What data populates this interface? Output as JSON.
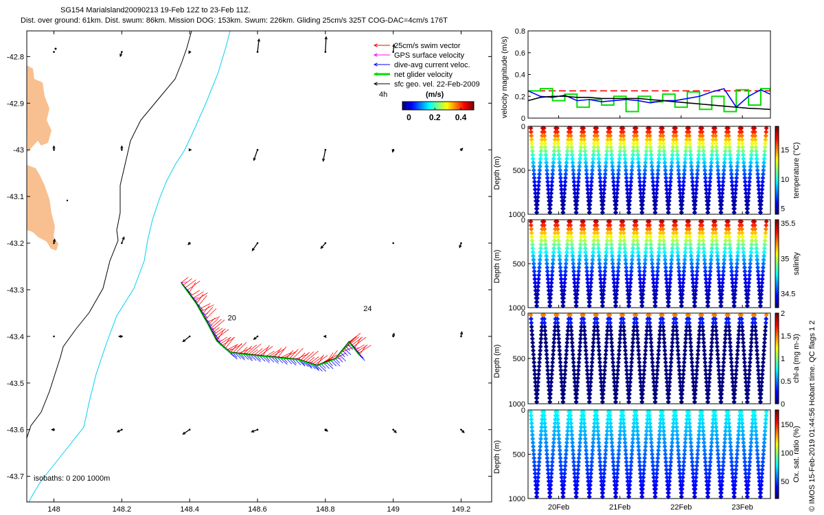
{
  "header": {
    "title": "SG154 Marialsland20090213 19-Feb 12Z to 23-Feb 11Z.",
    "subtitle": "Dist. over ground: 61km. Dist. swum: 86km. Mission DOG: 153km. Swum: 226km. Gliding 25cm/s 325T COG-DAC=4cm/s 176T"
  },
  "credit": "© IMOS 15-Feb-2019 01:44:56 Hobart time. QC flags 1  2",
  "colors": {
    "land": "#f8c090",
    "coast_contour": "#000000",
    "deep_contour": "#00d0f0",
    "swim": "#ff0000",
    "gps": "#ff00ff",
    "dac": "#0000ff",
    "net": "#00dd00",
    "sfc": "#000000"
  },
  "chart_data": [
    {
      "id": "map",
      "type": "scatter",
      "xlim": [
        147.92,
        149.29
      ],
      "ylim": [
        -43.755,
        -42.745
      ],
      "x_ticks": [
        148,
        148.2,
        148.4,
        148.6,
        148.8,
        149,
        149.2
      ],
      "x_tick_labels": [
        "148",
        "148.2",
        "148.4",
        "148.6",
        "148.8",
        "149",
        "149.2"
      ],
      "y_ticks": [
        -42.8,
        -42.9,
        -43,
        -43.1,
        -43.2,
        -43.3,
        -43.4,
        -43.5,
        -43.6,
        -43.7
      ],
      "y_tick_labels": [
        "-42.8",
        "-42.9",
        "-43",
        "-43.1",
        "-43.2",
        "-43.3",
        "-43.4",
        "-43.5",
        "-43.6",
        "-43.7"
      ],
      "legend": [
        {
          "label": "25cm/s swim vector",
          "color": "#ff0000",
          "style": "thin"
        },
        {
          "label": "GPS surface velocity",
          "color": "#ff00ff",
          "style": "thin"
        },
        {
          "label": "dive-avg current veloc.",
          "color": "#0000ff",
          "style": "thin"
        },
        {
          "label": "net glider velocity",
          "color": "#00dd00",
          "style": "thick"
        },
        {
          "label": "sfc geo. vel. 22-Feb-2009",
          "color": "#000000",
          "style": "thin"
        }
      ],
      "scale_label": "4h",
      "colorbar": {
        "title": "(m/s)",
        "ticks": [
          0,
          0.2,
          0.4
        ],
        "tick_labels": [
          "0",
          "0.2",
          "0.4"
        ],
        "range": [
          -0.05,
          0.5
        ]
      },
      "isobaths_label": "isobaths: 0   200  1000m",
      "day_labels": [
        {
          "text": "20",
          "x": 148.5,
          "y": -43.36
        },
        {
          "text": "24",
          "x": 148.9,
          "y": -43.34
        }
      ],
      "track": [
        [
          148.375,
          -43.285
        ],
        [
          148.42,
          -43.33
        ],
        [
          148.455,
          -43.375
        ],
        [
          148.48,
          -43.41
        ],
        [
          148.52,
          -43.435
        ],
        [
          148.58,
          -43.44
        ],
        [
          148.65,
          -43.445
        ],
        [
          148.72,
          -43.45
        ],
        [
          148.775,
          -43.463
        ],
        [
          148.83,
          -43.448
        ],
        [
          148.87,
          -43.412
        ],
        [
          148.9,
          -43.44
        ]
      ],
      "geo_vectors": [
        {
          "x": 148.0,
          "y": -42.79,
          "u": 0.01,
          "v": 0.0
        },
        {
          "x": 148.2,
          "y": -42.79,
          "u": -0.02,
          "v": -0.06
        },
        {
          "x": 148.4,
          "y": -42.79,
          "u": -0.01,
          "v": -0.02
        },
        {
          "x": 148.6,
          "y": -42.79,
          "u": 0.02,
          "v": 0.17
        },
        {
          "x": 148.8,
          "y": -42.79,
          "u": 0.01,
          "v": 0.2
        },
        {
          "x": 149.0,
          "y": -42.79,
          "u": 0.01,
          "v": 0.1
        },
        {
          "x": 148.0,
          "y": -43.0,
          "u": 0.0,
          "v": 0.05
        },
        {
          "x": 148.2,
          "y": -43.0,
          "u": 0.0,
          "v": 0.05
        },
        {
          "x": 148.4,
          "y": -43.0,
          "u": 0.02,
          "v": 0.0
        },
        {
          "x": 148.6,
          "y": -43.0,
          "u": -0.05,
          "v": -0.14
        },
        {
          "x": 148.8,
          "y": -43.0,
          "u": -0.03,
          "v": -0.15
        },
        {
          "x": 149.0,
          "y": -43.0,
          "u": -0.01,
          "v": -0.03
        },
        {
          "x": 149.2,
          "y": -43.0,
          "u": 0.02,
          "v": 0.02
        },
        {
          "x": 148.0,
          "y": -43.2,
          "u": 0.01,
          "v": 0.05
        },
        {
          "x": 148.2,
          "y": -43.2,
          "u": 0.03,
          "v": 0.08
        },
        {
          "x": 148.4,
          "y": -43.2,
          "u": -0.02,
          "v": -0.02
        },
        {
          "x": 148.6,
          "y": -43.2,
          "u": -0.07,
          "v": -0.1
        },
        {
          "x": 148.8,
          "y": -43.2,
          "u": -0.06,
          "v": -0.07
        },
        {
          "x": 149.0,
          "y": -43.2,
          "u": 0.0,
          "v": 0.0
        },
        {
          "x": 149.2,
          "y": -43.2,
          "u": -0.02,
          "v": -0.06
        },
        {
          "x": 148.0,
          "y": -43.4,
          "u": 0.0,
          "v": 0.0
        },
        {
          "x": 148.2,
          "y": -43.4,
          "u": -0.04,
          "v": 0.0
        },
        {
          "x": 148.4,
          "y": -43.4,
          "u": -0.09,
          "v": -0.07
        },
        {
          "x": 148.6,
          "y": -43.4,
          "u": -0.05,
          "v": -0.04
        },
        {
          "x": 148.8,
          "y": -43.4,
          "u": -0.02,
          "v": 0.0
        },
        {
          "x": 149.0,
          "y": -43.4,
          "u": 0.01,
          "v": 0.04
        },
        {
          "x": 149.2,
          "y": -43.4,
          "u": 0.01,
          "v": 0.06
        },
        {
          "x": 148.0,
          "y": -43.6,
          "u": -0.03,
          "v": 0.0
        },
        {
          "x": 148.2,
          "y": -43.6,
          "u": -0.06,
          "v": -0.03
        },
        {
          "x": 148.4,
          "y": -43.6,
          "u": -0.09,
          "v": -0.06
        },
        {
          "x": 148.6,
          "y": -43.6,
          "u": -0.08,
          "v": -0.03
        },
        {
          "x": 148.8,
          "y": -43.6,
          "u": 0.03,
          "v": -0.02
        },
        {
          "x": 149.0,
          "y": -43.6,
          "u": 0.04,
          "v": -0.04
        },
        {
          "x": 149.2,
          "y": -43.6,
          "u": 0.04,
          "v": -0.04
        }
      ]
    },
    {
      "id": "velocity",
      "type": "line",
      "ylabel": "velocity magnitude (m/s)",
      "ylim": [
        0,
        0.8
      ],
      "y_ticks": [
        0,
        0.2,
        0.4,
        0.6,
        0.8
      ],
      "y_tick_labels": [
        "0",
        "0.2",
        "0.4",
        "0.6",
        "0.8"
      ],
      "xlim": [
        19.5,
        23.458
      ],
      "x": [
        19.5,
        19.7,
        19.9,
        20.1,
        20.3,
        20.5,
        20.7,
        20.9,
        21.1,
        21.3,
        21.5,
        21.7,
        21.9,
        22.1,
        22.3,
        22.5,
        22.7,
        22.9,
        23.1,
        23.3,
        23.45
      ],
      "series": [
        {
          "name": "25cm/s swim vector",
          "color": "#ff0000",
          "dashed": true,
          "values": [
            0.25,
            0.25,
            0.25,
            0.25,
            0.25,
            0.25,
            0.25,
            0.25,
            0.25,
            0.25,
            0.25,
            0.25,
            0.25,
            0.25,
            0.25,
            0.25,
            0.25,
            0.25,
            0.25,
            0.25,
            0.25
          ]
        },
        {
          "name": "net glider velocity",
          "color": "#00dd00",
          "step": true,
          "values": [
            0.25,
            0.27,
            0.16,
            0.22,
            0.1,
            0.17,
            0.12,
            0.2,
            0.06,
            0.2,
            0.15,
            0.22,
            0.1,
            0.24,
            0.08,
            0.2,
            0.06,
            0.26,
            0.12,
            0.27,
            0.24
          ]
        },
        {
          "name": "dive-avg current veloc.",
          "color": "#0000ff",
          "values": [
            0.25,
            0.2,
            0.19,
            0.21,
            0.16,
            0.17,
            0.15,
            0.16,
            0.17,
            0.16,
            0.14,
            0.16,
            0.16,
            0.18,
            0.2,
            0.24,
            0.27,
            0.1,
            0.2,
            0.26,
            0.22
          ]
        },
        {
          "name": "sfc geo. vel. 22-Feb-2009",
          "color": "#000000",
          "values": [
            0.16,
            0.19,
            0.2,
            0.2,
            0.19,
            0.19,
            0.18,
            0.18,
            0.18,
            0.18,
            0.17,
            0.16,
            0.15,
            0.14,
            0.13,
            0.12,
            0.11,
            0.1,
            0.09,
            0.085,
            0.08
          ]
        }
      ]
    },
    {
      "id": "temperature",
      "type": "scatter",
      "ylabel": "Depth (m)",
      "ylim": [
        1000,
        0
      ],
      "y_ticks": [
        0,
        500,
        1000
      ],
      "y_tick_labels": [
        "0",
        "500",
        "1000"
      ],
      "colorbar_label": "temperature (°C)",
      "cb_range": [
        4,
        19
      ],
      "cb_ticks": [
        5,
        10,
        15
      ],
      "cb_tick_labels": [
        "5",
        "10",
        "15"
      ],
      "dives": 18,
      "surface_value": 18.5,
      "deep_value": 4.5,
      "min_surface_depth": 0
    },
    {
      "id": "salinity",
      "type": "scatter",
      "ylabel": "Depth (m)",
      "ylim": [
        1000,
        0
      ],
      "y_ticks": [
        0,
        500,
        1000
      ],
      "y_tick_labels": [
        "0",
        "500",
        "1000"
      ],
      "colorbar_label": "salinity",
      "cb_range": [
        34.3,
        35.55
      ],
      "cb_ticks": [
        34.5,
        35,
        35.5
      ],
      "cb_tick_labels": [
        "34.5",
        "35",
        "35.5"
      ],
      "dives": 18,
      "surface_value": 35.5,
      "deep_value": 34.35,
      "min_surface_depth": 0
    },
    {
      "id": "chla",
      "type": "scatter",
      "ylabel": "Depth (m)",
      "ylim": [
        1000,
        0
      ],
      "y_ticks": [
        0,
        500,
        1000
      ],
      "y_tick_labels": [
        "0",
        "500",
        "1000"
      ],
      "colorbar_label": "chl-a (mg m-3)",
      "cb_range": [
        0,
        2
      ],
      "cb_ticks": [
        0,
        0.5,
        1,
        1.5,
        2
      ],
      "cb_tick_labels": [
        "0",
        "0.5",
        "1",
        "1.5",
        "2"
      ],
      "dives": 18,
      "surface_value": 1.9,
      "deep_value": 0.0,
      "min_surface_depth": 0
    },
    {
      "id": "oxygen",
      "type": "scatter",
      "ylabel": "Depth (m)",
      "ylim": [
        1000,
        0
      ],
      "y_ticks": [
        0,
        500,
        1000
      ],
      "y_tick_labels": [
        "0",
        "500",
        "1000"
      ],
      "colorbar_label": "Ox. sat. ratio (%)",
      "cb_range": [
        20,
        175
      ],
      "cb_ticks": [
        50,
        100,
        150
      ],
      "cb_tick_labels": [
        "50",
        "100",
        "150"
      ],
      "dives": 18,
      "surface_value": 80,
      "deep_value": 35,
      "min_surface_depth": 0
    },
    {
      "id": "time_axis",
      "type": "line",
      "xlim": [
        19.5,
        23.458
      ],
      "x_ticks": [
        20,
        21,
        22,
        23
      ],
      "x_tick_labels": [
        "20Feb",
        "21Feb",
        "22Feb",
        "23Feb"
      ]
    }
  ]
}
